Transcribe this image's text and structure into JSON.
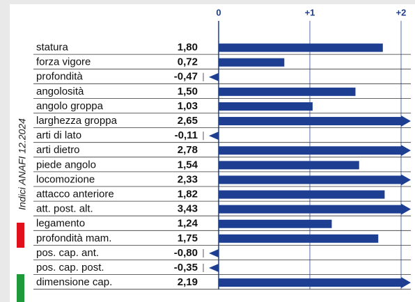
{
  "chart_data": {
    "type": "bar",
    "annotation": "Indici ANAFI 12.2024",
    "categories": [
      "statura",
      "forza vigore",
      "profondità",
      "angolosità",
      "angolo groppa",
      "larghezza groppa",
      "arti di lato",
      "arti dietro",
      "piede angolo",
      "locomozione",
      "attacco anteriore",
      "att. post. alt.",
      "legamento",
      "profondità mam.",
      "pos. cap. ant.",
      "pos. cap. post.",
      "dimensione cap."
    ],
    "values": [
      1.8,
      0.72,
      -0.47,
      1.5,
      1.03,
      2.65,
      -0.11,
      2.78,
      1.54,
      2.33,
      1.82,
      3.43,
      1.24,
      1.75,
      -0.8,
      -0.35,
      2.19
    ],
    "value_labels": [
      "1,80",
      "0,72",
      "-0,47",
      "1,50",
      "1,03",
      "2,65",
      "-0,11",
      "2,78",
      "1,54",
      "2,33",
      "1,82",
      "3,43",
      "1,24",
      "1,75",
      "-0,80",
      "-0,35",
      "2,19"
    ],
    "color": "#1d3e91",
    "xlim": [
      0,
      2
    ],
    "xticks": [
      0,
      {
        "value": 1,
        "label": "+1"
      },
      {
        "value": 2,
        "label": "+2"
      }
    ],
    "grid": true
  }
}
